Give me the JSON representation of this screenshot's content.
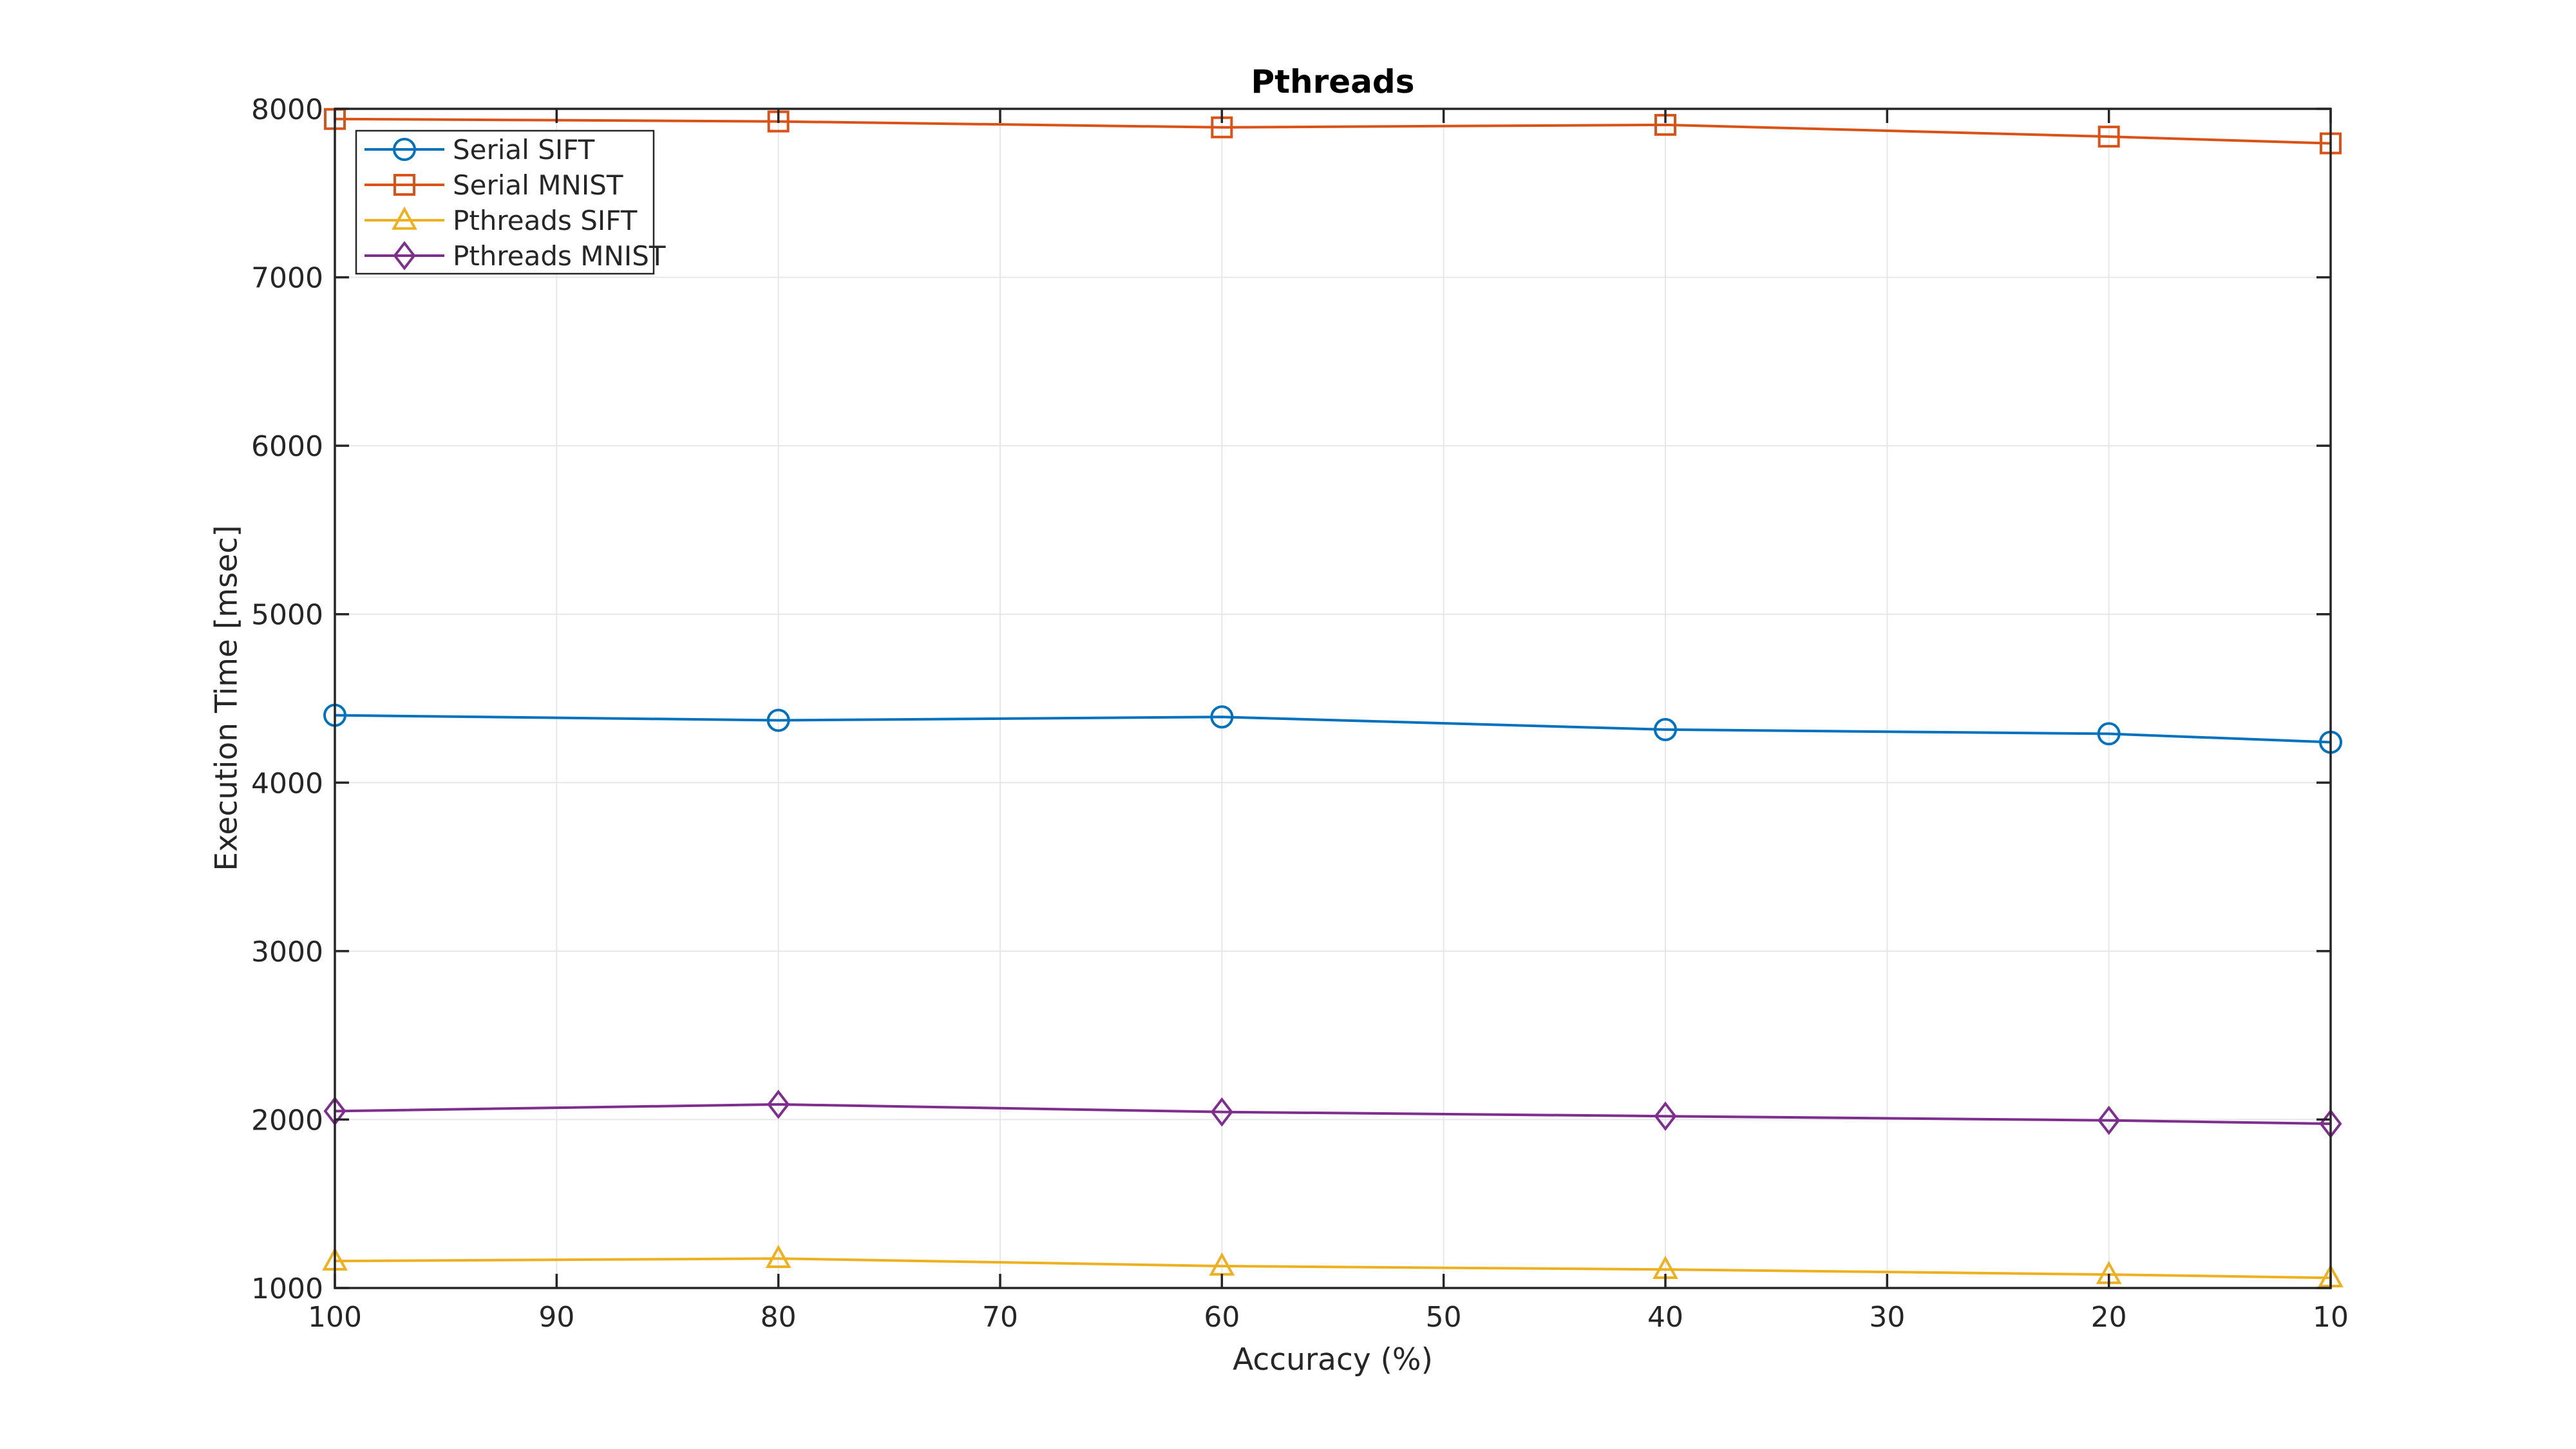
{
  "chart_data": {
    "type": "line",
    "title": "Pthreads",
    "xlabel": "Accuracy (%)",
    "ylabel": "Execution Time [msec]",
    "x": [
      100,
      80,
      60,
      40,
      20,
      10
    ],
    "xlim": [
      100,
      10
    ],
    "x_axis_reversed": true,
    "x_ticks": [
      100,
      90,
      80,
      70,
      60,
      50,
      40,
      30,
      20,
      10
    ],
    "x_tick_labels": [
      "100",
      "90",
      "80",
      "70",
      "60",
      "50",
      "40",
      "30",
      "20",
      "10"
    ],
    "ylim": [
      1000,
      8000
    ],
    "y_ticks": [
      1000,
      2000,
      3000,
      4000,
      5000,
      6000,
      7000,
      8000
    ],
    "y_tick_labels": [
      "1000",
      "2000",
      "3000",
      "4000",
      "5000",
      "6000",
      "7000",
      "8000"
    ],
    "grid": true,
    "legend_position": "top-left",
    "series": [
      {
        "name": "Serial SIFT",
        "color": "#0072BD",
        "marker": "circle",
        "values": [
          4400,
          4370,
          4390,
          4315,
          4290,
          4240
        ]
      },
      {
        "name": "Serial MNIST",
        "color": "#D95319",
        "marker": "square",
        "values": [
          7940,
          7925,
          7890,
          7905,
          7835,
          7795
        ]
      },
      {
        "name": "Pthreads SIFT",
        "color": "#EDB120",
        "marker": "triangle",
        "values": [
          1160,
          1175,
          1130,
          1110,
          1080,
          1060
        ]
      },
      {
        "name": "Pthreads MNIST",
        "color": "#7E2F8E",
        "marker": "diamond",
        "values": [
          2050,
          2090,
          2045,
          2020,
          1995,
          1975
        ]
      }
    ],
    "colors": {
      "axis": "#262626",
      "grid": "#e7e7e7",
      "background": "#ffffff",
      "title": "#000000"
    }
  }
}
